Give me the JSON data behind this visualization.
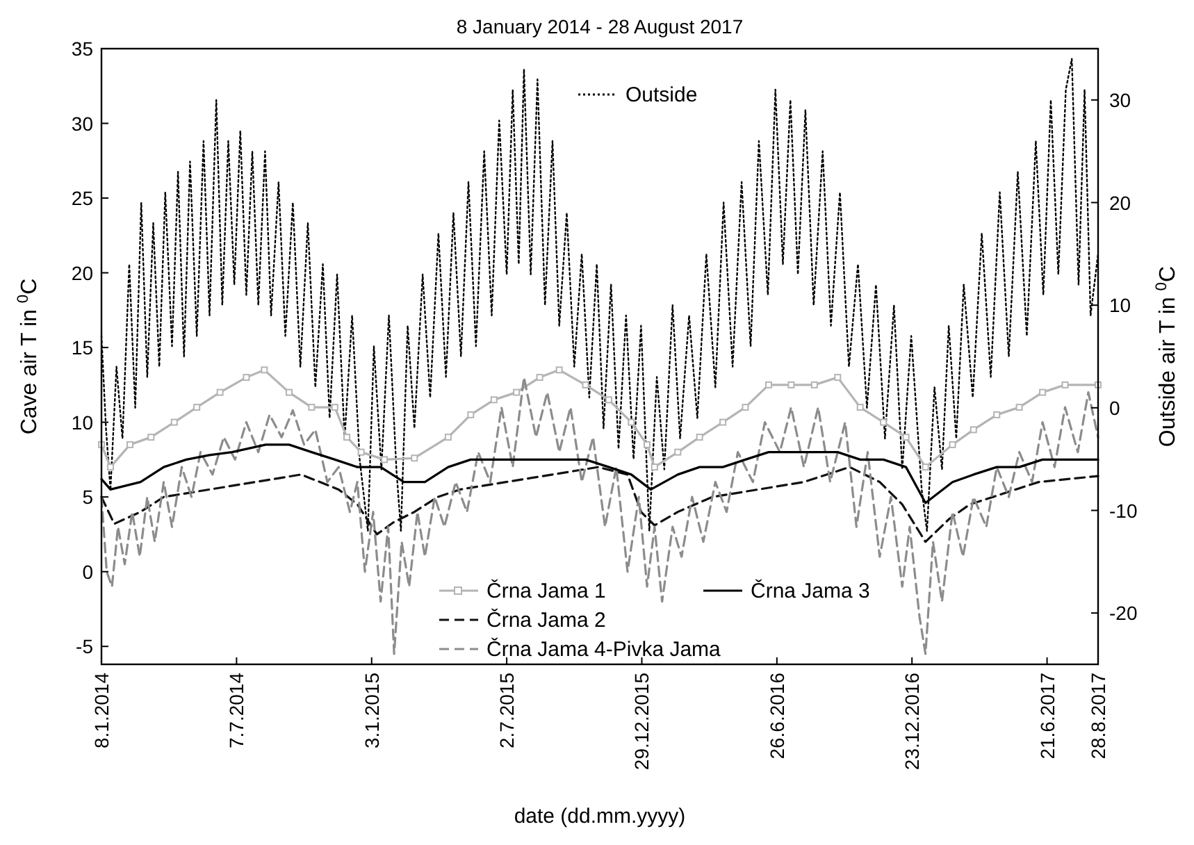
{
  "chart_data": {
    "type": "line",
    "title": "8 January 2014 - 28 August 2017",
    "xlabel": "date (dd.mm.yyyy)",
    "ylabel": "Cave air T in $^{0}$C",
    "y2label": "Outside air T in $^{0}$C",
    "xlim": [
      "2014-01-08",
      "2017-08-28"
    ],
    "xticks": [
      {
        "value": "2014-01-08",
        "label": "8.1.2014"
      },
      {
        "value": "2014-07-07",
        "label": "7.7.2014"
      },
      {
        "value": "2015-01-03",
        "label": "3.1.2015"
      },
      {
        "value": "2015-07-02",
        "label": "2.7.2015"
      },
      {
        "value": "2015-12-29",
        "label": "29.12.2015"
      },
      {
        "value": "2016-06-26",
        "label": "26.6.2016"
      },
      {
        "value": "2016-12-23",
        "label": "23.12.2016"
      },
      {
        "value": "2017-06-21",
        "label": "21.6.2017"
      },
      {
        "value": "2017-08-28",
        "label": "28.8.2017"
      }
    ],
    "ylim": [
      -6.2,
      35
    ],
    "yticks": [
      -5,
      0,
      5,
      10,
      15,
      20,
      25,
      30,
      35
    ],
    "y2lim": [
      -25,
      35
    ],
    "y2ticks": [
      -20,
      -10,
      0,
      10,
      20,
      30
    ],
    "legend": "bottom",
    "grid": false,
    "series": [
      {
        "name": "Črna Jama 1",
        "color": "#b4b4b4",
        "marker": "square",
        "line_style": "solid",
        "x": [
          "2014-01-08",
          "2014-01-20",
          "2014-02-15",
          "2014-03-15",
          "2014-04-15",
          "2014-05-15",
          "2014-06-15",
          "2014-07-20",
          "2014-08-13",
          "2014-09-15",
          "2014-10-15",
          "2014-11-15",
          "2014-12-01",
          "2014-12-20",
          "2015-01-20",
          "2015-03-01",
          "2015-04-15",
          "2015-05-15",
          "2015-06-15",
          "2015-07-15",
          "2015-08-15",
          "2015-09-10",
          "2015-10-15",
          "2015-11-15",
          "2015-12-15",
          "2016-01-05",
          "2016-01-15",
          "2016-02-15",
          "2016-03-15",
          "2016-04-15",
          "2016-05-15",
          "2016-06-15",
          "2016-07-15",
          "2016-08-15",
          "2016-09-15",
          "2016-10-15",
          "2016-11-15",
          "2016-12-15",
          "2017-01-10",
          "2017-02-15",
          "2017-03-15",
          "2017-04-15",
          "2017-05-15",
          "2017-06-15",
          "2017-07-15",
          "2017-08-28"
        ],
        "values": [
          8.5,
          7,
          8.5,
          9,
          10,
          11,
          12,
          13,
          13.5,
          12,
          11,
          11,
          9,
          8,
          7.5,
          7.6,
          9,
          10.5,
          11.5,
          12,
          13,
          13.5,
          12.5,
          11.5,
          10,
          8.5,
          7,
          8,
          9,
          10,
          11,
          12.5,
          12.5,
          12.5,
          13,
          11,
          10,
          9,
          7,
          8.5,
          9.5,
          10.5,
          11,
          12,
          12.5,
          12.5
        ]
      },
      {
        "name": "Črna Jama 2",
        "color": "#111111",
        "line_style": "dashed",
        "x": [
          "2014-01-08",
          "2014-01-25",
          "2014-03-01",
          "2014-04-01",
          "2014-06-01",
          "2014-08-01",
          "2014-10-01",
          "2014-11-20",
          "2014-12-15",
          "2015-01-10",
          "2015-02-01",
          "2015-03-01",
          "2015-04-01",
          "2015-05-01",
          "2015-07-01",
          "2015-09-01",
          "2015-11-01",
          "2015-12-10",
          "2015-12-28",
          "2016-01-15",
          "2016-02-15",
          "2016-04-01",
          "2016-06-01",
          "2016-08-01",
          "2016-10-01",
          "2016-11-10",
          "2016-12-10",
          "2017-01-10",
          "2017-02-10",
          "2017-03-10",
          "2017-04-10",
          "2017-05-10",
          "2017-06-10",
          "2017-08-28"
        ],
        "values": [
          5,
          3.2,
          4,
          5,
          5.5,
          6,
          6.5,
          5.5,
          4.5,
          2.5,
          3.3,
          4,
          5,
          5.5,
          6,
          6.5,
          7,
          6.5,
          4,
          3.1,
          4,
          5,
          5.5,
          6,
          7,
          6,
          4.5,
          2,
          3.5,
          4.5,
          5,
          5.5,
          6,
          6.4
        ]
      },
      {
        "name": "Črna Jama 4-Pivka Jama",
        "color": "#8c8c8c",
        "line_style": "dashed",
        "x": [
          "2014-01-08",
          "2014-01-15",
          "2014-01-22",
          "2014-01-30",
          "2014-02-08",
          "2014-02-18",
          "2014-02-28",
          "2014-03-10",
          "2014-03-20",
          "2014-04-01",
          "2014-04-12",
          "2014-04-25",
          "2014-05-08",
          "2014-05-20",
          "2014-06-05",
          "2014-06-20",
          "2014-07-05",
          "2014-07-20",
          "2014-08-05",
          "2014-08-20",
          "2014-09-05",
          "2014-09-20",
          "2014-10-05",
          "2014-10-20",
          "2014-11-05",
          "2014-11-20",
          "2014-12-05",
          "2014-12-15",
          "2014-12-25",
          "2015-01-05",
          "2015-01-15",
          "2015-01-25",
          "2015-02-02",
          "2015-02-12",
          "2015-02-22",
          "2015-03-05",
          "2015-03-15",
          "2015-03-28",
          "2015-04-10",
          "2015-04-25",
          "2015-05-10",
          "2015-05-25",
          "2015-06-10",
          "2015-06-25",
          "2015-07-10",
          "2015-07-25",
          "2015-08-10",
          "2015-08-25",
          "2015-09-10",
          "2015-09-25",
          "2015-10-10",
          "2015-10-25",
          "2015-11-10",
          "2015-11-25",
          "2015-12-10",
          "2015-12-25",
          "2016-01-05",
          "2016-01-15",
          "2016-01-25",
          "2016-02-08",
          "2016-02-20",
          "2016-03-05",
          "2016-03-20",
          "2016-04-05",
          "2016-04-20",
          "2016-05-05",
          "2016-05-25",
          "2016-06-10",
          "2016-06-30",
          "2016-07-15",
          "2016-08-01",
          "2016-08-20",
          "2016-09-05",
          "2016-09-25",
          "2016-10-10",
          "2016-10-25",
          "2016-11-10",
          "2016-11-25",
          "2016-12-10",
          "2016-12-20",
          "2017-01-02",
          "2017-01-10",
          "2017-01-20",
          "2017-02-01",
          "2017-02-15",
          "2017-03-01",
          "2017-03-15",
          "2017-04-01",
          "2017-04-15",
          "2017-05-01",
          "2017-05-15",
          "2017-06-01",
          "2017-06-15",
          "2017-07-01",
          "2017-07-15",
          "2017-08-01",
          "2017-08-15",
          "2017-08-28"
        ],
        "values": [
          5,
          0,
          -1,
          3,
          0.5,
          4,
          1,
          5,
          2,
          6,
          3,
          7,
          5,
          8,
          6.5,
          9,
          7.5,
          10,
          8,
          10.5,
          9,
          10.8,
          8.5,
          9.5,
          6,
          7,
          4,
          6,
          0,
          4,
          -2,
          3,
          -5.5,
          2,
          -1,
          4,
          1,
          5,
          3,
          6,
          4,
          8,
          6,
          11,
          7,
          13,
          9,
          12,
          8,
          11,
          6,
          9,
          3,
          7,
          0,
          5,
          -1,
          3,
          -2,
          3,
          1,
          5,
          2,
          6,
          4,
          8,
          6,
          10,
          8,
          11,
          7,
          11,
          6,
          10,
          3,
          8,
          1,
          5,
          -1,
          3,
          -3,
          -5.5,
          2,
          -2,
          4,
          1,
          5,
          3,
          7,
          5,
          8,
          6,
          10,
          7,
          11,
          8,
          12,
          9
        ]
      },
      {
        "name": "Črna Jama 3",
        "color": "#000000",
        "line_style": "solid",
        "x": [
          "2014-01-08",
          "2014-01-20",
          "2014-03-01",
          "2014-04-01",
          "2014-05-01",
          "2014-06-01",
          "2014-07-01",
          "2014-08-15",
          "2014-09-15",
          "2014-10-15",
          "2014-11-15",
          "2014-12-15",
          "2015-01-15",
          "2015-02-15",
          "2015-03-15",
          "2015-04-15",
          "2015-05-15",
          "2015-07-15",
          "2015-08-15",
          "2015-10-15",
          "2015-11-15",
          "2015-12-15",
          "2016-01-10",
          "2016-02-15",
          "2016-03-15",
          "2016-04-15",
          "2016-05-15",
          "2016-06-15",
          "2016-08-15",
          "2016-09-15",
          "2016-10-15",
          "2016-11-15",
          "2016-12-15",
          "2017-01-10",
          "2017-02-15",
          "2017-03-15",
          "2017-04-15",
          "2017-05-15",
          "2017-06-15",
          "2017-08-28"
        ],
        "values": [
          6.2,
          5.5,
          6,
          7,
          7.5,
          7.8,
          8,
          8.5,
          8.5,
          8,
          7.5,
          7,
          7,
          6,
          6,
          7,
          7.5,
          7.5,
          7.5,
          7.5,
          7,
          6.5,
          5.5,
          6.5,
          7,
          7,
          7.5,
          8,
          8,
          8,
          7.5,
          7.5,
          7,
          4.6,
          6,
          6.5,
          7,
          7,
          7.5,
          7.5
        ]
      },
      {
        "name": "Outside",
        "color": "#000000",
        "axis": "y2",
        "line_style": "dotted",
        "x": [
          "2014-01-08",
          "2014-01-14",
          "2014-01-20",
          "2014-01-28",
          "2014-02-05",
          "2014-02-14",
          "2014-02-22",
          "2014-03-02",
          "2014-03-10",
          "2014-03-18",
          "2014-03-26",
          "2014-04-03",
          "2014-04-12",
          "2014-04-20",
          "2014-04-28",
          "2014-05-06",
          "2014-05-15",
          "2014-05-24",
          "2014-06-01",
          "2014-06-10",
          "2014-06-18",
          "2014-06-26",
          "2014-07-04",
          "2014-07-12",
          "2014-07-20",
          "2014-07-28",
          "2014-08-05",
          "2014-08-14",
          "2014-08-22",
          "2014-09-01",
          "2014-09-10",
          "2014-09-20",
          "2014-09-30",
          "2014-10-10",
          "2014-10-20",
          "2014-10-30",
          "2014-11-08",
          "2014-11-18",
          "2014-11-28",
          "2014-12-08",
          "2014-12-18",
          "2014-12-29",
          "2015-01-06",
          "2015-01-16",
          "2015-01-26",
          "2015-02-05",
          "2015-02-11",
          "2015-02-20",
          "2015-03-01",
          "2015-03-12",
          "2015-03-22",
          "2015-04-02",
          "2015-04-12",
          "2015-04-22",
          "2015-05-02",
          "2015-05-12",
          "2015-05-22",
          "2015-06-02",
          "2015-06-12",
          "2015-06-22",
          "2015-07-02",
          "2015-07-10",
          "2015-07-18",
          "2015-07-25",
          "2015-08-03",
          "2015-08-12",
          "2015-08-22",
          "2015-09-01",
          "2015-09-10",
          "2015-09-20",
          "2015-09-30",
          "2015-10-10",
          "2015-10-20",
          "2015-10-30",
          "2015-11-08",
          "2015-11-18",
          "2015-11-28",
          "2015-12-08",
          "2015-12-18",
          "2015-12-28",
          "2016-01-08",
          "2016-01-18",
          "2016-01-28",
          "2016-02-08",
          "2016-02-18",
          "2016-03-01",
          "2016-03-12",
          "2016-03-24",
          "2016-04-05",
          "2016-04-16",
          "2016-04-28",
          "2016-05-10",
          "2016-05-22",
          "2016-06-02",
          "2016-06-14",
          "2016-06-24",
          "2016-07-04",
          "2016-07-14",
          "2016-07-24",
          "2016-08-03",
          "2016-08-14",
          "2016-08-26",
          "2016-09-06",
          "2016-09-18",
          "2016-09-30",
          "2016-10-12",
          "2016-10-24",
          "2016-11-05",
          "2016-11-17",
          "2016-11-29",
          "2016-12-10",
          "2016-12-22",
          "2017-01-05",
          "2017-01-12",
          "2017-01-22",
          "2017-02-01",
          "2017-02-10",
          "2017-02-20",
          "2017-03-02",
          "2017-03-14",
          "2017-03-26",
          "2017-04-07",
          "2017-04-19",
          "2017-05-01",
          "2017-05-13",
          "2017-05-25",
          "2017-06-06",
          "2017-06-16",
          "2017-06-26",
          "2017-07-06",
          "2017-07-16",
          "2017-07-24",
          "2017-08-02",
          "2017-08-10",
          "2017-08-18",
          "2017-08-28"
        ],
        "values": [
          7,
          -2,
          -8,
          4,
          -3,
          14,
          0,
          20,
          3,
          18,
          4,
          21,
          6,
          23,
          5,
          24,
          7,
          26,
          9,
          30,
          10,
          26,
          12,
          27,
          11,
          25,
          10,
          25,
          9,
          22,
          7,
          20,
          4,
          18,
          2,
          14,
          -1,
          13,
          -3,
          9,
          -5,
          -12,
          6,
          -6,
          9,
          -6,
          -12,
          8,
          -2,
          13,
          1,
          17,
          3,
          19,
          5,
          22,
          6,
          25,
          9,
          28,
          13,
          31,
          14,
          33,
          13,
          32,
          10,
          26,
          8,
          19,
          4,
          15,
          1,
          14,
          -2,
          12,
          -4,
          9,
          -5,
          8,
          -12,
          3,
          -6,
          10,
          -3,
          9,
          -1,
          15,
          2,
          20,
          4,
          22,
          6,
          26,
          11,
          31,
          14,
          30,
          13,
          29,
          10,
          25,
          8,
          21,
          4,
          14,
          0,
          12,
          -3,
          10,
          -6,
          7,
          -8,
          -12,
          2,
          -6,
          8,
          -3,
          12,
          1,
          17,
          3,
          21,
          5,
          23,
          7,
          26,
          11,
          30,
          13,
          31,
          34,
          12,
          31,
          9,
          15
        ]
      }
    ]
  }
}
